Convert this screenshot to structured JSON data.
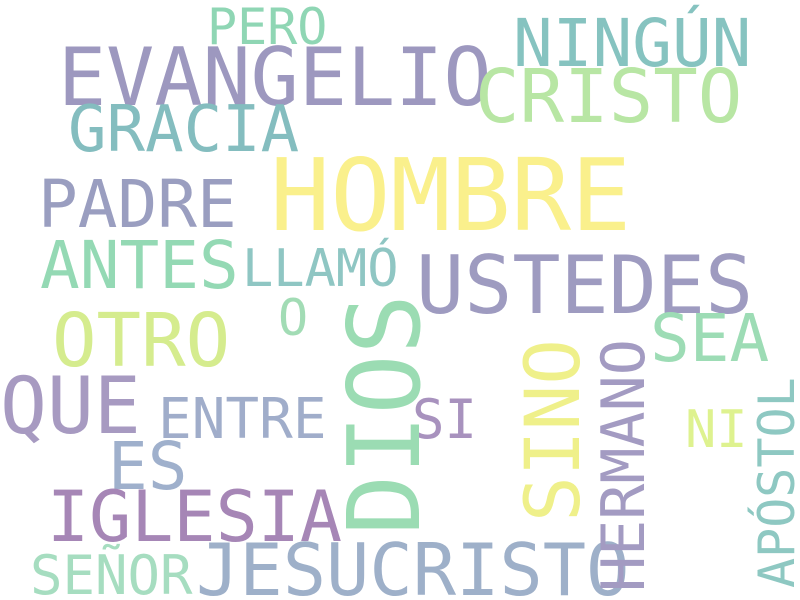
{
  "word_cloud": {
    "words": [
      {
        "text": "PERO",
        "color": "#8fd6b4"
      },
      {
        "text": "NINGÚN",
        "color": "#86c3c0"
      },
      {
        "text": "EVANGELIO",
        "color": "#9d98bf"
      },
      {
        "text": "CRISTO",
        "color": "#b8e6a4"
      },
      {
        "text": "GRACIA",
        "color": "#84bdbf"
      },
      {
        "text": "HOMBRE",
        "color": "#faf08c"
      },
      {
        "text": "PADRE",
        "color": "#9a9ec0"
      },
      {
        "text": "ANTES",
        "color": "#94d9b4"
      },
      {
        "text": "LLAMÓ",
        "color": "#8fc6c3"
      },
      {
        "text": "USTEDES",
        "color": "#9e9bc0"
      },
      {
        "text": "O",
        "color": "#a2dcb5"
      },
      {
        "text": "OTRO",
        "color": "#d5ec8e"
      },
      {
        "text": "SEA",
        "color": "#9ddcb5"
      },
      {
        "text": "DIOS",
        "color": "#9bdcb3"
      },
      {
        "text": "SINO",
        "color": "#eff08a"
      },
      {
        "text": "HERMANO",
        "color": "#a39bc2"
      },
      {
        "text": "QUE",
        "color": "#a79ac1"
      },
      {
        "text": "ENTRE",
        "color": "#a0adca"
      },
      {
        "text": "SI",
        "color": "#a892be"
      },
      {
        "text": "NI",
        "color": "#def28f"
      },
      {
        "text": "APÓSTOL",
        "color": "#8ec8c2"
      },
      {
        "text": "ES",
        "color": "#9fb0cc"
      },
      {
        "text": "IGLESIA",
        "color": "#a686b6"
      },
      {
        "text": "SEÑOR",
        "color": "#a6ddc0"
      },
      {
        "text": "JESUCRISTO",
        "color": "#9eb0c9"
      }
    ]
  }
}
